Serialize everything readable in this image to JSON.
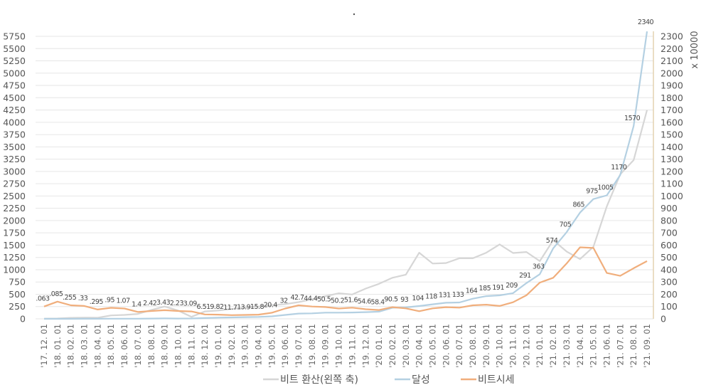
{
  "chart_data": {
    "type": "line",
    "title": "",
    "right_axis_unit": "x 10000",
    "grid": true,
    "legend_position": "bottom",
    "categories": [
      "'17. 12. 01",
      "'18. 01. 01",
      "'18. 02. 01",
      "'18. 03. 01",
      "'18. 04. 01",
      "'18. 05. 01",
      "'18. 06. 01",
      "'18. 07. 01",
      "'18. 08. 01",
      "'18. 09. 01",
      "'18. 10. 01",
      "'18. 11. 01",
      "'18. 12. 01",
      "'19. 01. 01",
      "'19. 02. 01",
      "'19. 03. 01",
      "'19. 04. 01",
      "'19. 05. 01",
      "'19. 06. 01",
      "'19. 07. 01",
      "'19. 08. 01",
      "'19. 09. 01",
      "'19. 10. 01",
      "'19. 11. 01",
      "'19. 12. 01",
      "'20. 01. 01",
      "'20. 02. 01",
      "'20. 03. 01",
      "'20. 04. 01",
      "'20. 05. 01",
      "'20. 06. 01",
      "'20. 07. 01",
      "'20. 08. 01",
      "'20. 09. 01",
      "'20. 10. 01",
      "'20. 11. 01",
      "'20. 12. 01",
      "'21. 01. 01",
      "'21. 02. 01",
      "'21. 03. 01",
      "'21. 04. 01",
      "'21. 05. 01",
      "'21. 06. 01",
      "'21. 07. 01",
      "'21. 08. 01",
      "'21. 09. 01"
    ],
    "left_axis": {
      "min": 0,
      "max": 5750,
      "ticks": [
        "0",
        "250",
        "500",
        "750",
        "1000",
        "1250",
        "1500",
        "1750",
        "2000",
        "2250",
        "2500",
        "2750",
        "3000",
        "3250",
        "3500",
        "3750",
        "4000",
        "4250",
        "4500",
        "4750",
        "5000",
        "5250",
        "5500",
        "5750"
      ]
    },
    "right_axis": {
      "min": 0,
      "max": 2300,
      "ticks": [
        "0",
        "100",
        "200",
        "300",
        "400",
        "500",
        "600",
        "700",
        "800",
        "900",
        "1000",
        "1100",
        "1200",
        "1300",
        "1400",
        "1500",
        "1600",
        "1700",
        "1800",
        "1900",
        "2000",
        "2100",
        "2200",
        "2300"
      ]
    },
    "series": [
      {
        "name": "비트 환산(왼쪽 축)",
        "axis": "left",
        "color": "#d6d6d6",
        "values": [
          5,
          7,
          20,
          25,
          22,
          70,
          80,
          100,
          180,
          250,
          170,
          40,
          150,
          170,
          200,
          230,
          250,
          280,
          300,
          340,
          400,
          460,
          520,
          495,
          615,
          713,
          835,
          900,
          1345,
          1126,
          1136,
          1233,
          1233,
          1345,
          1515,
          1340,
          1360,
          1175,
          1600,
          1370,
          1215,
          1466,
          2290,
          2940,
          3230,
          4250
        ]
      },
      {
        "name": "달성",
        "axis": "right",
        "color": "#b4d0e2",
        "values": [
          0.063,
          0.085,
          0.255,
          0.33,
          0.295,
          0.95,
          1.07,
          1.4,
          2.42,
          3.43,
          2.23,
          3.09,
          6.51,
          9.82,
          11.7,
          13.9,
          15.8,
          20.4,
          32,
          42.7,
          44.4,
          50.5,
          50.2,
          51.6,
          54.6,
          58.4,
          90.5,
          93,
          104,
          118,
          131,
          133,
          164,
          185,
          191,
          209,
          291,
          363,
          574,
          705,
          865,
          975,
          1005,
          1170,
          1570,
          2340
        ],
        "labels": [
          ".063",
          ".085",
          ".255",
          ".33",
          ".295",
          ".95",
          "1.07",
          "1.4",
          "2.42",
          "3.43",
          "2.23",
          "3.09",
          "6.51",
          "9.82",
          "11.7",
          "13.9",
          "15.8",
          "20.4",
          "32",
          "42.7",
          "44.4",
          "50.5",
          "50.2",
          "51.6",
          "54.6",
          "58.4",
          "90.5",
          "93",
          "104",
          "118",
          "131",
          "133",
          "164",
          "185",
          "191",
          "209",
          "291",
          "363",
          "574",
          "705",
          "865",
          "975",
          "1005",
          "1170",
          "1570",
          "2340"
        ]
      },
      {
        "name": "비트시세",
        "axis": "right",
        "color": "#f0ae7c",
        "values": [
          100,
          140,
          110,
          105,
          76,
          90,
          84,
          56,
          64,
          70,
          64,
          60,
          36,
          34,
          30,
          32,
          34,
          50,
          84,
          110,
          100,
          96,
          84,
          91,
          78,
          72,
          95,
          85,
          62,
          85,
          95,
          91,
          110,
          115,
          105,
          135,
          192,
          295,
          334,
          450,
          582,
          577,
          373,
          350,
          412,
          470
        ]
      }
    ]
  }
}
